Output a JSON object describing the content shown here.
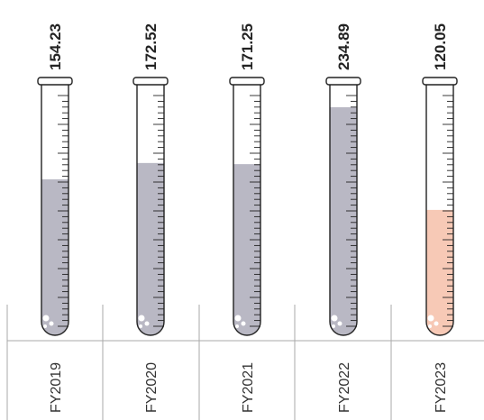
{
  "chart_data": {
    "type": "bar",
    "style": "test-tube",
    "categories": [
      "FY2019",
      "FY2020",
      "FY2021",
      "FY2022",
      "FY2023"
    ],
    "values": [
      154.23,
      172.52,
      171.25,
      234.89,
      120.05
    ],
    "value_labels": [
      "154.23",
      "172.52",
      "171.25",
      "234.89",
      "120.05"
    ],
    "ylim": [
      0,
      250
    ],
    "title": "",
    "xlabel": "",
    "ylabel": "",
    "colors": {
      "default": "#b9b8c4",
      "highlight": "#f7c9b6",
      "outline": "#222222",
      "bubbles": "#ffffff",
      "axis": "#aaaaaa"
    },
    "highlight_index": 4
  }
}
